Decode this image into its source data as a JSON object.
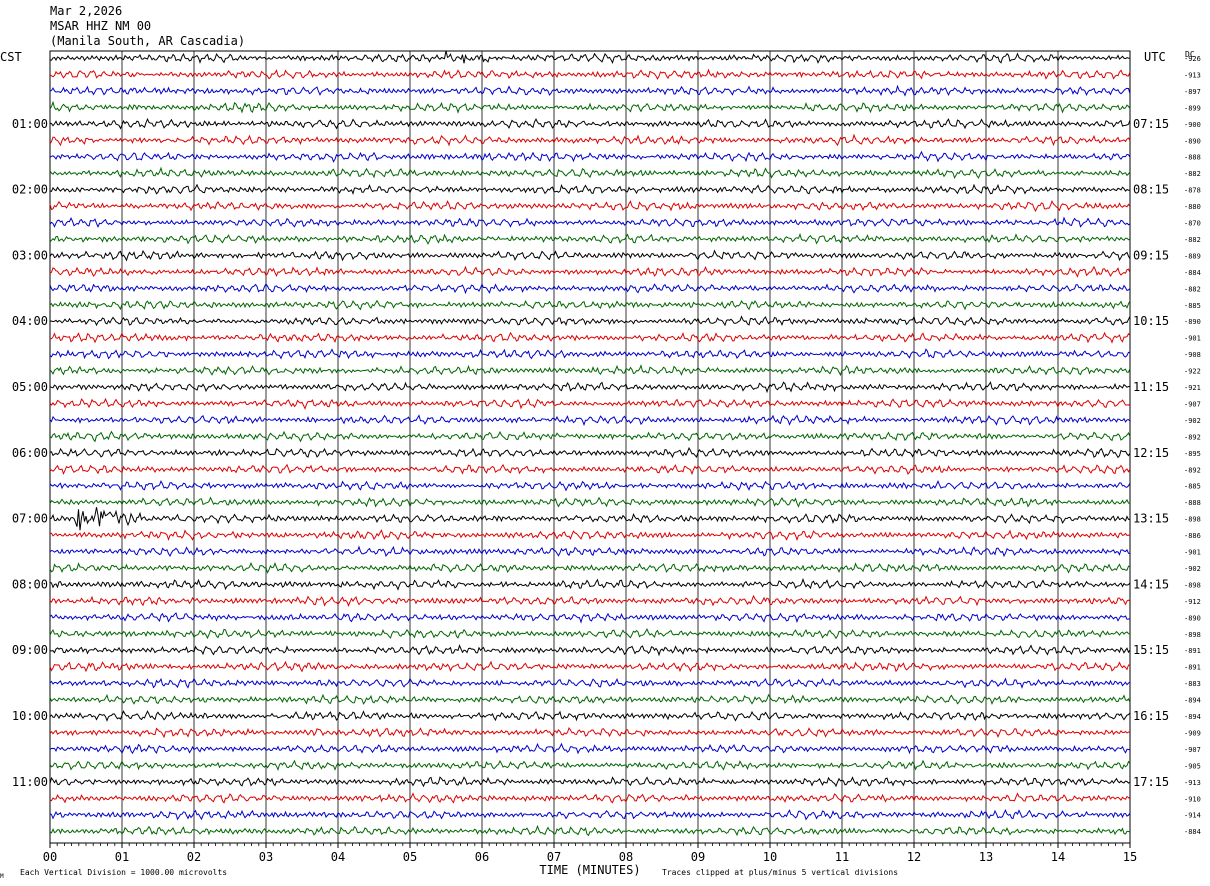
{
  "header": {
    "date": "Mar 2,2026",
    "station": "MSAR HHZ NM 00",
    "location": "(Manila South, AR Cascadia)"
  },
  "axis_labels": {
    "left_tz": "CST",
    "right_tz": "UTC",
    "dc": "DC",
    "xlabel": "TIME (MINUTES)"
  },
  "footer": {
    "scale_note": "Each Vertical Division = 1000.00 microvolts",
    "clip_note": "Traces clipped at plus/minus 5 vertical divisions",
    "corner_mark": "M"
  },
  "chart_data": {
    "type": "line",
    "title": "MSAR HHZ NM 00",
    "xlabel": "TIME (MINUTES)",
    "xlim": [
      0,
      15
    ],
    "x_ticks": [
      "00",
      "01",
      "02",
      "03",
      "04",
      "05",
      "06",
      "07",
      "08",
      "09",
      "10",
      "11",
      "12",
      "13",
      "14",
      "15"
    ],
    "left_hour_labels": [
      "01:00",
      "02:00",
      "03:00",
      "04:00",
      "05:00",
      "06:00",
      "07:00",
      "08:00",
      "09:00",
      "10:00",
      "11:00"
    ],
    "right_hour_labels": [
      "07:15",
      "08:15",
      "09:15",
      "10:15",
      "11:15",
      "12:15",
      "13:15",
      "14:15",
      "15:15",
      "16:15",
      "17:15"
    ],
    "trace_colors": [
      "#000000",
      "#dd0000",
      "#0000cc",
      "#006600"
    ],
    "dc_offsets": [
      -926,
      -913,
      -897,
      -899,
      -900,
      -890,
      -888,
      -882,
      -878,
      -880,
      -870,
      -882,
      -889,
      -884,
      -882,
      -885,
      -890,
      -901,
      -908,
      -922,
      -921,
      -907,
      -902,
      -892,
      -895,
      -892,
      -885,
      -888,
      -898,
      -886,
      -901,
      -902,
      -898,
      -912,
      -890,
      -898,
      -891,
      -891,
      -883,
      -894,
      -894,
      -909,
      -907,
      -905,
      -913,
      -910,
      -914,
      -884
    ],
    "events": [
      {
        "trace": 28,
        "start_min": 0.35,
        "end_min": 1.3,
        "amplitude": "high"
      },
      {
        "trace": 0,
        "start_min": 5.5,
        "end_min": 6.1,
        "amplitude": "medium"
      },
      {
        "trace": 41,
        "start_min": 3.6,
        "end_min": 3.9,
        "amplitude": "medium"
      }
    ]
  }
}
